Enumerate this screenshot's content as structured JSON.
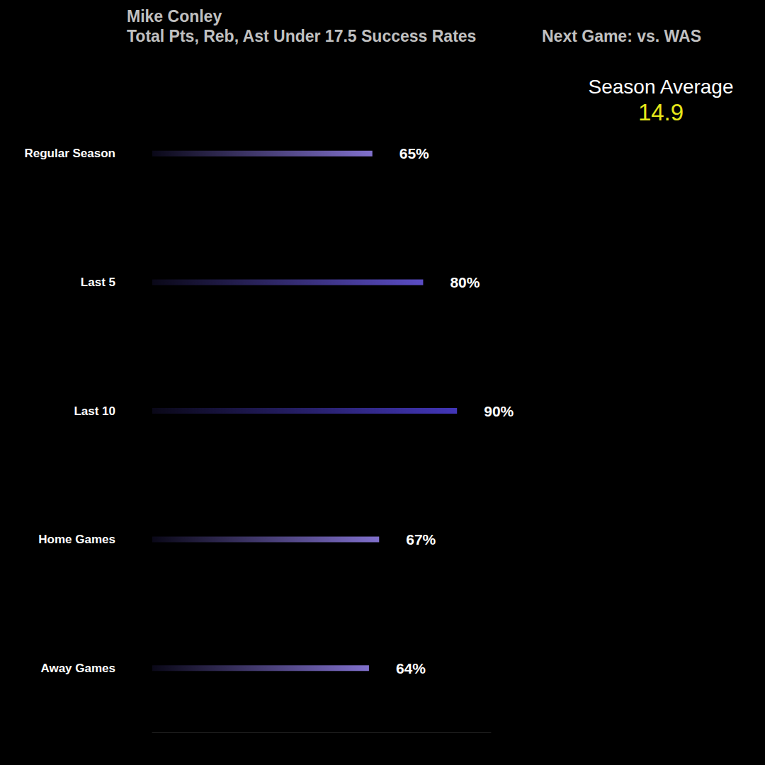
{
  "chart_data": {
    "type": "bar",
    "orientation": "horizontal",
    "title": "Mike Conley",
    "subtitle": "Total Pts, Reb, Ast Under 17.5 Success Rates",
    "annotations": [
      {
        "text": "Next Game: vs. WAS"
      }
    ],
    "season_average": {
      "label": "Season Average",
      "value": 14.9
    },
    "categories": [
      "Regular Season",
      "Last 5",
      "Last 10",
      "Home Games",
      "Away Games"
    ],
    "values": [
      65,
      80,
      90,
      67,
      64
    ],
    "value_labels": [
      "65%",
      "80%",
      "90%",
      "67%",
      "64%"
    ],
    "colors": [
      "#8070cc",
      "#5a4cc4",
      "#4236b8",
      "#8070cc",
      "#8070cc"
    ],
    "xlim": [
      0,
      100
    ],
    "data_labels": true,
    "tick_labels": "y",
    "grid": false
  }
}
